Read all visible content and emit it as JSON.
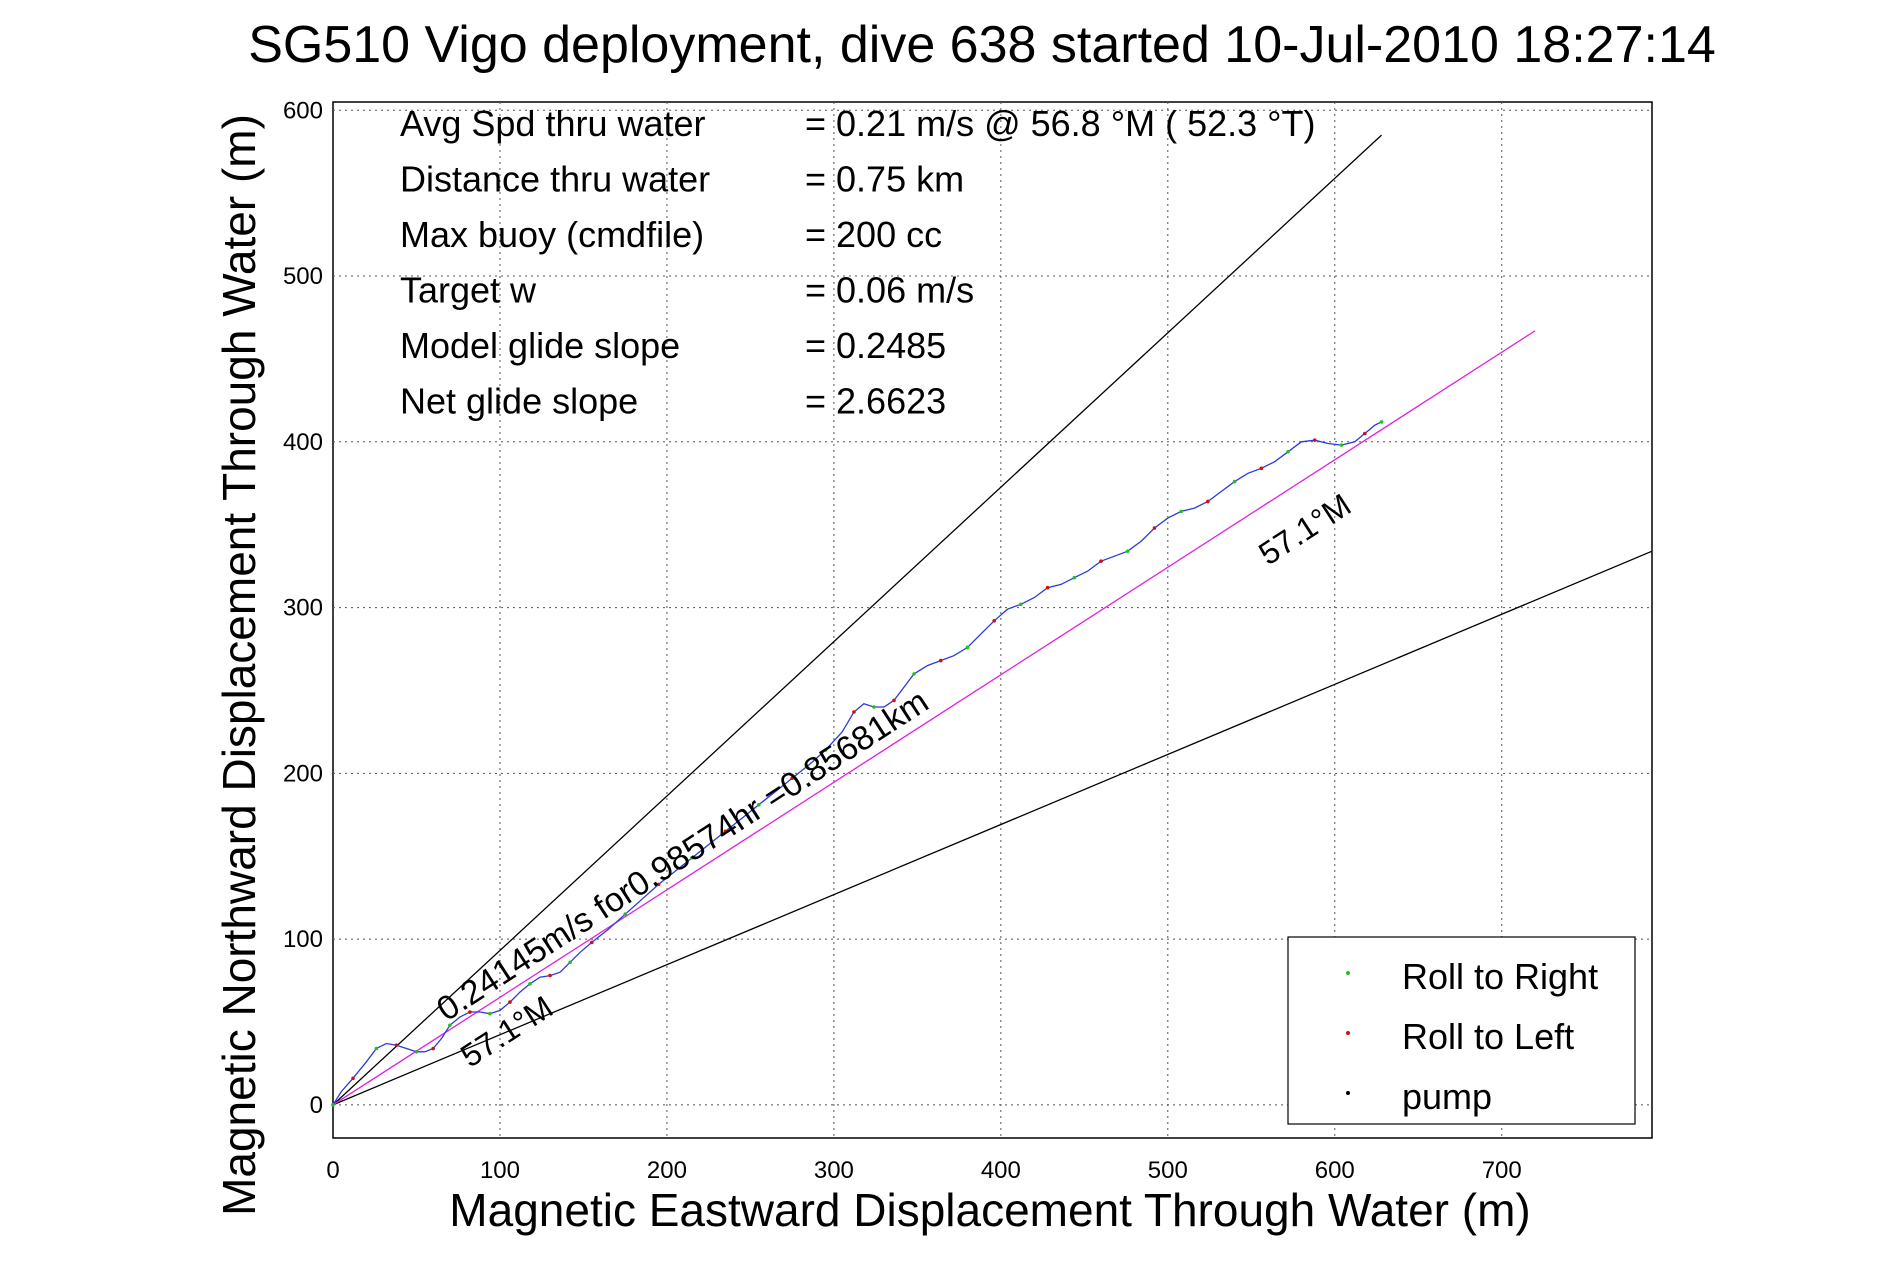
{
  "chart_data": {
    "type": "line",
    "title": "SG510 Vigo deployment, dive 638 started 10-Jul-2010 18:27:14",
    "xlabel": "Magnetic Eastward Displacement Through Water (m)",
    "ylabel": "Magnetic Northward Displacement Through Water (m)",
    "xlim": [
      0,
      790
    ],
    "ylim": [
      -20,
      605
    ],
    "xticks": [
      0,
      100,
      200,
      300,
      400,
      500,
      600,
      700
    ],
    "yticks": [
      0,
      100,
      200,
      300,
      400,
      500,
      600
    ],
    "grid": true,
    "legend_position": "bottom-right",
    "stats": [
      {
        "label": "Avg Spd thru water",
        "value": "=  0.21 m/s @  56.8 °M ( 52.3 °T)"
      },
      {
        "label": "Distance thru water",
        "value": "=  0.75 km"
      },
      {
        "label": "Max buoy (cmdfile)",
        "value": "= 200 cc"
      },
      {
        "label": "Target w",
        "value": "= 0.06 m/s"
      },
      {
        "label": "Model glide slope",
        "value": "= 0.2485"
      },
      {
        "label": "Net glide slope",
        "value": "= 2.6623"
      }
    ],
    "annotations": [
      {
        "text": "0.24145m/s for0.98574hr =0.85681km",
        "x": 68,
        "y": 50
      },
      {
        "text": "57.1°M",
        "x": 82,
        "y": 22
      },
      {
        "text": "57.1°M",
        "x": 560,
        "y": 325
      }
    ],
    "reference_lines": [
      {
        "name": "upper-bound",
        "color": "#000000",
        "x": [
          0,
          628
        ],
        "y": [
          0,
          585
        ]
      },
      {
        "name": "lower-bound",
        "color": "#000000",
        "x": [
          0,
          790
        ],
        "y": [
          0,
          334
        ]
      },
      {
        "name": "mean-heading",
        "color": "#e020e0",
        "x": [
          0,
          720
        ],
        "y": [
          0,
          467
        ]
      }
    ],
    "series": [
      {
        "name": "track",
        "color": "#2b3bd8",
        "x": [
          0,
          5,
          12,
          20,
          26,
          32,
          38,
          44,
          50,
          55,
          60,
          65,
          70,
          76,
          82,
          88,
          94,
          100,
          106,
          112,
          118,
          124,
          130,
          136,
          142,
          148,
          155,
          165,
          175,
          185,
          195,
          205,
          215,
          225,
          235,
          245,
          255,
          265,
          275,
          285,
          295,
          305,
          312,
          318,
          324,
          330,
          336,
          342,
          348,
          356,
          364,
          372,
          380,
          388,
          396,
          404,
          412,
          420,
          428,
          436,
          444,
          452,
          460,
          468,
          476,
          484,
          492,
          500,
          508,
          516,
          524,
          532,
          540,
          548,
          556,
          564,
          572,
          580,
          588,
          596,
          604,
          612,
          618,
          624,
          628
        ],
        "y": [
          0,
          8,
          16,
          26,
          34,
          37,
          36,
          34,
          32,
          32,
          34,
          40,
          48,
          53,
          56,
          56,
          55,
          57,
          62,
          68,
          73,
          77,
          78,
          80,
          86,
          92,
          98,
          106,
          115,
          124,
          133,
          141,
          149,
          157,
          165,
          173,
          181,
          189,
          197,
          205,
          214,
          225,
          237,
          242,
          240,
          240,
          244,
          252,
          260,
          265,
          268,
          271,
          276,
          284,
          292,
          299,
          302,
          306,
          312,
          314,
          318,
          322,
          328,
          331,
          334,
          340,
          348,
          354,
          358,
          360,
          364,
          370,
          376,
          381,
          384,
          388,
          394,
          400,
          401,
          399,
          398,
          400,
          405,
          410,
          412
        ]
      }
    ],
    "legend": [
      {
        "label": "Roll to Right",
        "color": "#20c020"
      },
      {
        "label": "Roll to Left",
        "color": "#d01010"
      },
      {
        "label": "pump",
        "color": "#000000"
      }
    ]
  }
}
